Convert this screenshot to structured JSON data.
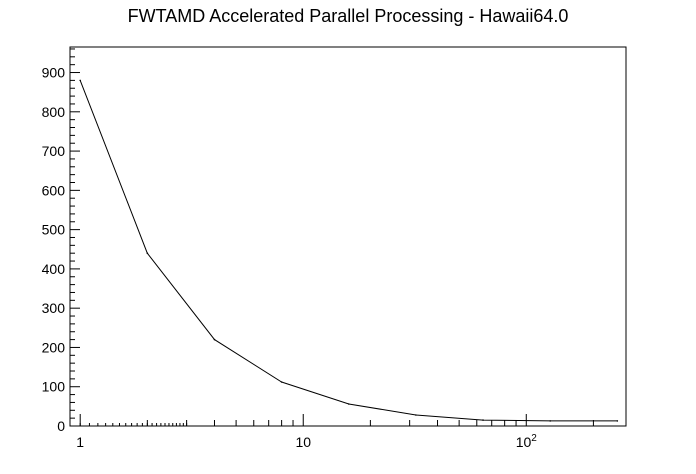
{
  "chart_data": {
    "type": "line",
    "title": "FWTAMD Accelerated Parallel Processing - Hawaii64.0",
    "xlabel": "",
    "ylabel": "",
    "x_scale": "log",
    "xlim": [
      0.9,
      280
    ],
    "ylim": [
      0,
      965
    ],
    "x_ticks": [
      "1",
      "10",
      "10^2"
    ],
    "y_ticks": [
      "0",
      "100",
      "200",
      "300",
      "400",
      "500",
      "600",
      "700",
      "800",
      "900"
    ],
    "grid": false,
    "series": [
      {
        "x": [
          1,
          2,
          4,
          8,
          16,
          32,
          64,
          128,
          256
        ],
        "values": [
          880,
          440,
          220,
          112,
          56,
          28,
          15,
          13,
          13
        ]
      }
    ],
    "line_color": "#000000"
  }
}
